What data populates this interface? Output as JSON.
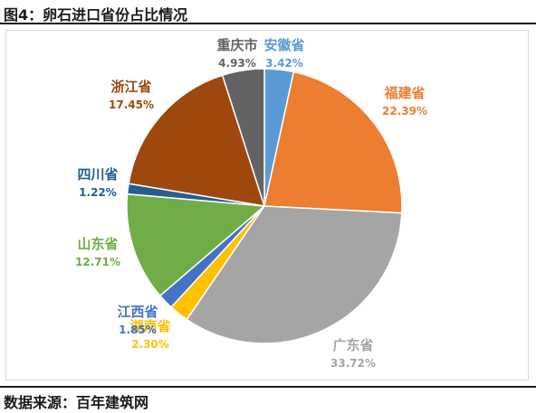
{
  "figure": {
    "title": "图4：卵石进口省份占比情况",
    "source": "数据来源：百年建筑网"
  },
  "chart_data": {
    "type": "pie",
    "title": "",
    "slices": [
      {
        "label": "安徽省",
        "value": 3.42,
        "value_text": "3.42%",
        "color": "#5b9bd5"
      },
      {
        "label": "福建省",
        "value": 22.39,
        "value_text": "22.39%",
        "color": "#ed7d31"
      },
      {
        "label": "广东省",
        "value": 33.72,
        "value_text": "33.72%",
        "color": "#a5a5a5"
      },
      {
        "label": "湖南省",
        "value": 2.3,
        "value_text": "2.30%",
        "color": "#ffc000"
      },
      {
        "label": "江西省",
        "value": 1.85,
        "value_text": "1.85%",
        "color": "#4472c4"
      },
      {
        "label": "山东省",
        "value": 12.71,
        "value_text": "12.71%",
        "color": "#70ad47"
      },
      {
        "label": "四川省",
        "value": 1.22,
        "value_text": "1.22%",
        "color": "#255e91"
      },
      {
        "label": "浙江省",
        "value": 17.45,
        "value_text": "17.45%",
        "color": "#9e480e"
      },
      {
        "label": "重庆市",
        "value": 4.93,
        "value_text": "4.93%",
        "color": "#636363"
      }
    ]
  }
}
